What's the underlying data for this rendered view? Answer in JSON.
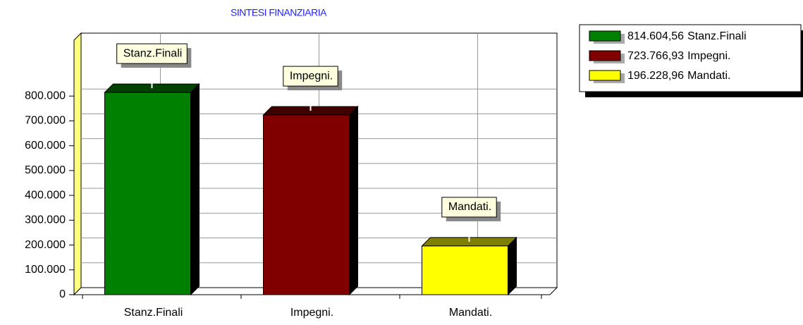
{
  "chart_data": {
    "type": "bar3d",
    "title": "SINTESI FINANZIARIA",
    "categories": [
      "Stanz.Finali",
      "Impegni.",
      "Mandati."
    ],
    "values": [
      814604.56,
      723766.93,
      196228.96
    ],
    "value_labels": [
      "814.604,56",
      "723.766,93",
      "196.228,96"
    ],
    "colors": [
      "#008000",
      "#800000",
      "#ffff00"
    ],
    "ylim": [
      0,
      1025000
    ],
    "yticks": [
      0,
      {
        "value": 100000,
        "label": "100.000"
      },
      {
        "value": 200000,
        "label": "200.000"
      },
      {
        "value": 300000,
        "label": "300.000"
      },
      {
        "value": 400000,
        "label": "400.000"
      },
      {
        "value": 500000,
        "label": "500.000"
      },
      {
        "value": 600000,
        "label": "600.000"
      },
      {
        "value": 700000,
        "label": "700.000"
      },
      {
        "value": 800000,
        "label": "800.000"
      }
    ],
    "grid": true,
    "legend": "top-right"
  }
}
